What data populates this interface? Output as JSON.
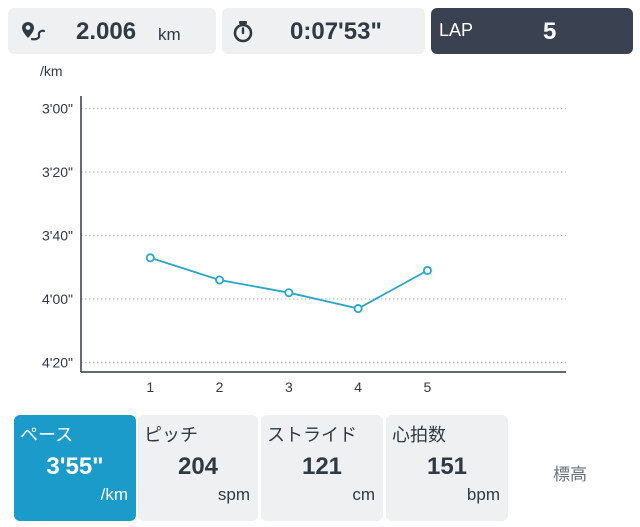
{
  "header": {
    "distance": {
      "icon": "route-pin-icon",
      "value": "2.006",
      "unit": "km"
    },
    "time": {
      "icon": "stopwatch-icon",
      "value": "0:07'53\""
    },
    "lap": {
      "label": "LAP",
      "value": "5"
    }
  },
  "chart_data": {
    "type": "line",
    "title": "",
    "xlabel": "",
    "ylabel": "/km",
    "y_inverted": true,
    "ylim": [
      180,
      260
    ],
    "y_ticks": [
      {
        "value": 180,
        "label": "3'00\""
      },
      {
        "value": 200,
        "label": "3'20\""
      },
      {
        "value": 220,
        "label": "3'40\""
      },
      {
        "value": 240,
        "label": "4'00\""
      },
      {
        "value": 260,
        "label": "4'20\""
      }
    ],
    "x": [
      1,
      2,
      3,
      4,
      5
    ],
    "x_tick_labels": [
      "1",
      "2",
      "3",
      "4",
      "5"
    ],
    "series": [
      {
        "values": [
          227,
          234,
          238,
          243,
          231
        ]
      }
    ],
    "grid": "horizontal-dotted",
    "line_color": "#2aa6c6"
  },
  "metrics": {
    "pace": {
      "label": "ペース",
      "value": "3'55\"",
      "unit": "/km",
      "selected": true
    },
    "pitch": {
      "label": "ピッチ",
      "value": "204",
      "unit": "spm"
    },
    "stride": {
      "label": "ストライド",
      "value": "121",
      "unit": "cm"
    },
    "heart_rate": {
      "label": "心拍数",
      "value": "151",
      "unit": "bpm"
    },
    "elevation": {
      "label": "標高"
    }
  },
  "colors": {
    "accent": "#1a9bca",
    "lap_bg": "#3a4150",
    "card_bg": "#eef0f2"
  }
}
